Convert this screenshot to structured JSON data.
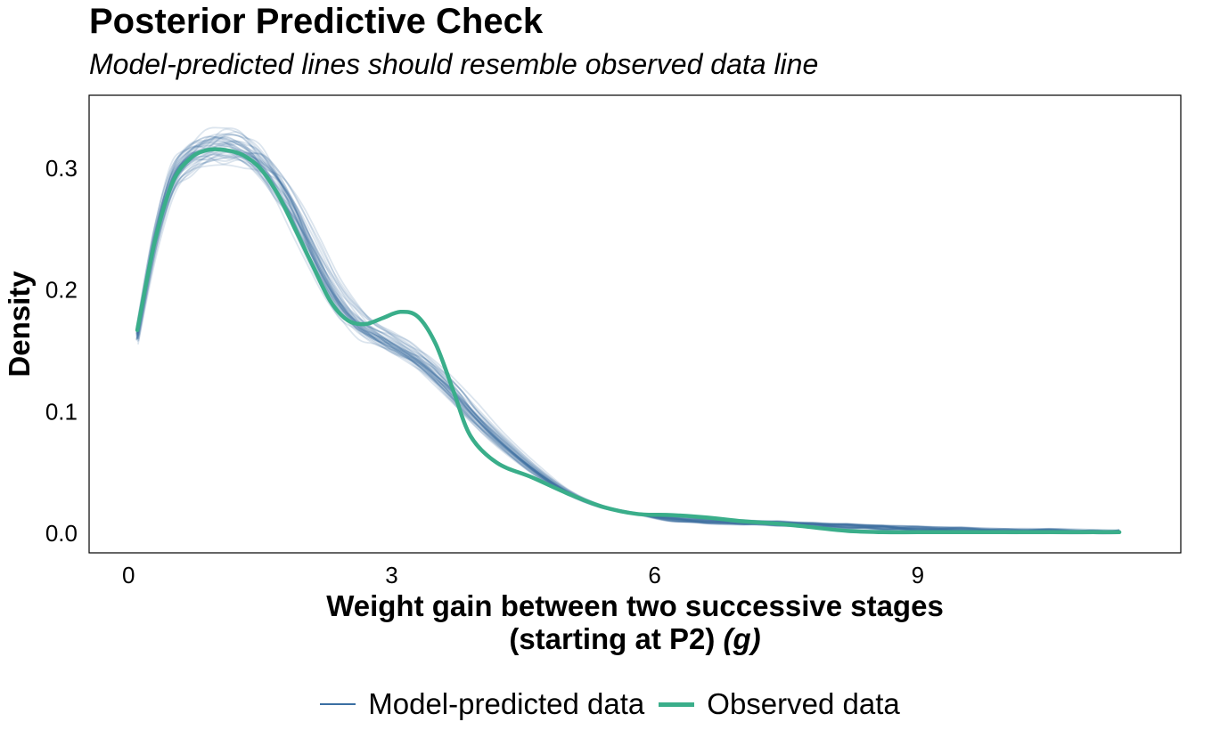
{
  "title": "Posterior Predictive Check",
  "subtitle": "Model-predicted lines should resemble observed data line",
  "colors": {
    "predicted": "#3b6fa3",
    "observed": "#3aae8a",
    "frame": "#000000"
  },
  "chart_data": {
    "type": "line",
    "title": "Posterior Predictive Check",
    "subtitle": "Model-predicted lines should resemble observed data line",
    "xlabel_main": "Weight gain between two successive stages",
    "xlabel_line2": "(starting at P2) ",
    "xlabel_unit": "(g)",
    "ylabel": "Density",
    "xlim": [
      -0.45,
      12.0
    ],
    "ylim": [
      -0.016,
      0.36
    ],
    "x_ticks": [
      0,
      3,
      6,
      9
    ],
    "x_tick_labels": [
      "0",
      "3",
      "6",
      "9"
    ],
    "y_ticks": [
      0.0,
      0.1,
      0.2,
      0.3
    ],
    "y_tick_labels": [
      "0.0",
      "0.1",
      "0.2",
      "0.3"
    ],
    "grid": false,
    "legend_position": "bottom",
    "legend": [
      "Model-predicted data",
      "Observed data"
    ],
    "series": [
      {
        "name": "Observed data",
        "x": [
          0.1,
          0.3,
          0.5,
          0.7,
          0.9,
          1.1,
          1.3,
          1.5,
          1.7,
          1.9,
          2.1,
          2.3,
          2.5,
          2.7,
          2.9,
          3.1,
          3.3,
          3.5,
          3.7,
          3.9,
          4.2,
          4.6,
          5.0,
          5.4,
          5.8,
          6.2,
          6.6,
          7.0,
          7.4,
          7.8,
          8.2,
          8.6,
          9.0,
          9.5,
          10.0,
          10.5,
          11.0,
          11.3
        ],
        "y": [
          0.167,
          0.24,
          0.288,
          0.308,
          0.315,
          0.315,
          0.311,
          0.3,
          0.279,
          0.25,
          0.22,
          0.191,
          0.175,
          0.172,
          0.177,
          0.182,
          0.178,
          0.156,
          0.118,
          0.08,
          0.058,
          0.046,
          0.033,
          0.022,
          0.016,
          0.015,
          0.013,
          0.01,
          0.008,
          0.005,
          0.002,
          0.001,
          0.001,
          0.001,
          0.001,
          0.001,
          0.001,
          0.001
        ]
      }
    ],
    "predicted": {
      "name": "Model-predicted data",
      "x": [
        0.1,
        0.3,
        0.5,
        0.7,
        0.9,
        1.1,
        1.3,
        1.5,
        1.7,
        1.9,
        2.1,
        2.3,
        2.5,
        2.7,
        2.9,
        3.1,
        3.3,
        3.5,
        3.7,
        3.9,
        4.2,
        4.6,
        5.0,
        5.4,
        5.8,
        6.2,
        6.6,
        7.0,
        7.4,
        7.8,
        8.2,
        8.6,
        9.0,
        9.5,
        10.0,
        10.5,
        11.0,
        11.3
      ],
      "y": [
        0.163,
        0.24,
        0.29,
        0.309,
        0.316,
        0.318,
        0.315,
        0.305,
        0.286,
        0.262,
        0.232,
        0.202,
        0.182,
        0.168,
        0.16,
        0.152,
        0.143,
        0.131,
        0.117,
        0.101,
        0.079,
        0.054,
        0.034,
        0.022,
        0.016,
        0.012,
        0.01,
        0.009,
        0.008,
        0.007,
        0.006,
        0.005,
        0.004,
        0.003,
        0.002,
        0.002,
        0.001,
        0.001
      ],
      "draws": 40
    }
  }
}
